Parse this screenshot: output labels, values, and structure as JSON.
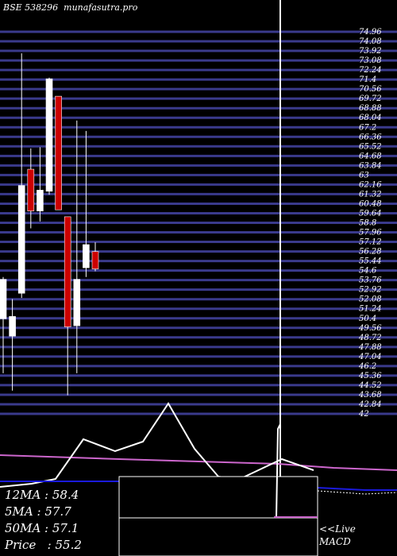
{
  "header": {
    "ticker": "BSE 538296",
    "site": "munafasutra.pro"
  },
  "colors": {
    "background": "#000000",
    "grid": "#3a3a8c",
    "up_candle": "#ffffff",
    "down_candle": "#cc0000",
    "ma_line": "#cc66cc",
    "indicator_line": "#ffffff",
    "macd_line": "#1a1adc"
  },
  "chart_data": {
    "type": "candlestick",
    "y_ticks": [
      "74.96",
      "74.08",
      "73.92",
      "73.08",
      "72.24",
      "71.4",
      "70.56",
      "69.72",
      "68.88",
      "68.04",
      "67.2",
      "66.36",
      "65.52",
      "64.68",
      "63.84",
      "63",
      "62.16",
      "61.32",
      "60.48",
      "59.64",
      "58.8",
      "57.96",
      "57.12",
      "56.28",
      "55.44",
      "54.6",
      "53.76",
      "52.92",
      "52.08",
      "51.24",
      "50.4",
      "49.56",
      "48.72",
      "47.88",
      "47.04",
      "46.2",
      "45.36",
      "44.52",
      "43.68",
      "42.84",
      "42"
    ],
    "ylim": [
      42,
      74.96
    ],
    "candles": [
      {
        "open": 50.2,
        "high": 53.8,
        "low": 45.5,
        "close": 53.6
      },
      {
        "open": 48.7,
        "high": 51.9,
        "low": 44.0,
        "close": 50.4
      },
      {
        "open": 52.4,
        "high": 73.1,
        "low": 52.0,
        "close": 61.7
      },
      {
        "open": 63.1,
        "high": 64.9,
        "low": 58.0,
        "close": 59.5
      },
      {
        "open": 59.5,
        "high": 65.0,
        "low": 58.6,
        "close": 61.3
      },
      {
        "open": 61.2,
        "high": 71.0,
        "low": 60.9,
        "close": 70.9
      },
      {
        "open": 69.4,
        "high": 69.4,
        "low": 59.7,
        "close": 59.6
      },
      {
        "open": 59.0,
        "high": 59.0,
        "low": 43.6,
        "close": 49.5
      },
      {
        "open": 49.6,
        "high": 67.3,
        "low": 45.5,
        "close": 53.6
      },
      {
        "open": 54.6,
        "high": 66.4,
        "low": 53.8,
        "close": 56.6
      },
      {
        "open": 56.0,
        "high": 56.8,
        "low": 54.3,
        "close": 54.5
      }
    ],
    "indicators": {
      "ma_panel": [
        {
          "label": "12MA",
          "value": "58.4"
        },
        {
          "label": "5MA",
          "value": "57.7"
        },
        {
          "label": "50MA",
          "value": "57.1"
        },
        {
          "label": "Price",
          "value": "55.2"
        }
      ]
    },
    "links": {
      "live": "<<Live",
      "macd": "MACD"
    }
  }
}
